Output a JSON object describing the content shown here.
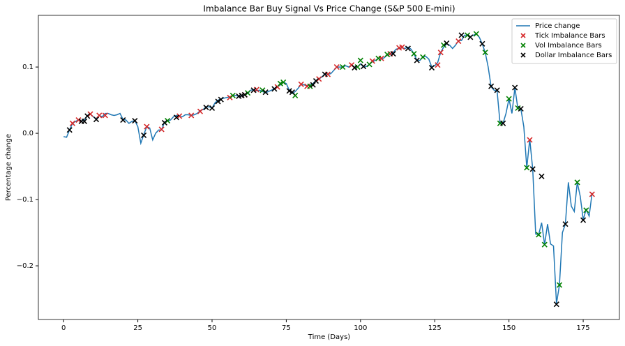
{
  "chart_data": {
    "type": "line",
    "title": "Imbalance Bar Buy Signal Vs Price Change (S&P 500 E-mini)",
    "x_label": "Time (Days)",
    "y_label": "Percentage change",
    "xlim": [
      -8.5,
      187.2
    ],
    "ylim": [
      -0.281,
      0.178
    ],
    "xticks": [
      0,
      25,
      50,
      75,
      100,
      125,
      150,
      175
    ],
    "yticks": [
      {
        "value": -0.2,
        "label": "−0.2"
      },
      {
        "value": -0.1,
        "label": "−0.1"
      },
      {
        "value": 0,
        "label": "0.0"
      },
      0.1
    ],
    "grid": false,
    "legend": "upper right",
    "series": [
      {
        "name": "Price change",
        "color": "#1f77b4",
        "marker": "line",
        "x": [
          0,
          1,
          2,
          3,
          4,
          5,
          6,
          7,
          8,
          9,
          10,
          11,
          12,
          13,
          14,
          15,
          16,
          17,
          18,
          19,
          20,
          21,
          22,
          23,
          24,
          25,
          26,
          27,
          28,
          29,
          30,
          31,
          32,
          33,
          34,
          35,
          36,
          37,
          38,
          39,
          40,
          41,
          42,
          43,
          44,
          45,
          46,
          47,
          48,
          49,
          50,
          51,
          52,
          53,
          54,
          55,
          56,
          57,
          58,
          59,
          60,
          61,
          62,
          63,
          64,
          65,
          66,
          67,
          68,
          69,
          70,
          71,
          72,
          73,
          74,
          75,
          76,
          77,
          78,
          79,
          80,
          81,
          82,
          83,
          84,
          85,
          86,
          87,
          88,
          89,
          90,
          91,
          92,
          93,
          94,
          95,
          96,
          97,
          98,
          99,
          100,
          101,
          102,
          103,
          104,
          105,
          106,
          107,
          108,
          109,
          110,
          111,
          112,
          113,
          114,
          115,
          116,
          117,
          118,
          119,
          120,
          121,
          122,
          123,
          124,
          125,
          126,
          127,
          128,
          129,
          130,
          131,
          132,
          133,
          134,
          135,
          136,
          137,
          138,
          139,
          140,
          141,
          142,
          143,
          144,
          145,
          146,
          147,
          148,
          149,
          150,
          151,
          152,
          153,
          154,
          155,
          156,
          157,
          158,
          159,
          160,
          161,
          162,
          163,
          164,
          165,
          166,
          167,
          168,
          169,
          170,
          171,
          172,
          173,
          174,
          175,
          176,
          177,
          178
        ],
        "values": [
          -0.005,
          -0.006,
          0.005,
          0.015,
          0.018,
          0.02,
          0.018,
          0.02,
          0.027,
          0.029,
          0.025,
          0.022,
          0.027,
          0.025,
          0.03,
          0.03,
          0.028,
          0.027,
          0.028,
          0.03,
          0.021,
          0.02,
          0.015,
          0.018,
          0.019,
          0.01,
          -0.015,
          -0.002,
          0.01,
          0.008,
          -0.01,
          0.0,
          0.005,
          0.005,
          0.017,
          0.019,
          0.02,
          0.025,
          0.027,
          0.025,
          0.025,
          0.028,
          0.028,
          0.027,
          0.028,
          0.03,
          0.034,
          0.036,
          0.04,
          0.04,
          0.038,
          0.046,
          0.05,
          0.052,
          0.053,
          0.054,
          0.055,
          0.057,
          0.057,
          0.056,
          0.056,
          0.058,
          0.06,
          0.065,
          0.066,
          0.064,
          0.065,
          0.063,
          0.061,
          0.063,
          0.065,
          0.068,
          0.07,
          0.073,
          0.077,
          0.075,
          0.065,
          0.06,
          0.063,
          0.068,
          0.074,
          0.073,
          0.072,
          0.073,
          0.075,
          0.08,
          0.082,
          0.085,
          0.09,
          0.089,
          0.09,
          0.095,
          0.1,
          0.1,
          0.1,
          0.102,
          0.1,
          0.103,
          0.1,
          0.1,
          0.105,
          0.1,
          0.101,
          0.104,
          0.108,
          0.11,
          0.113,
          0.112,
          0.114,
          0.118,
          0.119,
          0.122,
          0.127,
          0.128,
          0.129,
          0.128,
          0.13,
          0.127,
          0.12,
          0.11,
          0.11,
          0.115,
          0.116,
          0.112,
          0.1,
          0.102,
          0.107,
          0.122,
          0.13,
          0.135,
          0.133,
          0.128,
          0.133,
          0.14,
          0.14,
          0.148,
          0.148,
          0.146,
          0.148,
          0.15,
          0.145,
          0.135,
          0.122,
          0.1,
          0.07,
          0.065,
          0.064,
          0.015,
          0.015,
          0.03,
          0.052,
          0.03,
          0.069,
          0.037,
          0.037,
          0.01,
          -0.052,
          -0.009,
          -0.054,
          -0.152,
          -0.153,
          -0.135,
          -0.168,
          -0.137,
          -0.167,
          -0.17,
          -0.257,
          -0.229,
          -0.15,
          -0.137,
          -0.074,
          -0.11,
          -0.118,
          -0.074,
          -0.095,
          -0.13,
          -0.115,
          -0.125,
          -0.09
        ]
      },
      {
        "name": "Tick Imbalance Bars",
        "color": "#d62728",
        "marker": "x",
        "x": [
          3,
          5,
          9,
          12,
          14,
          28,
          33,
          39,
          43,
          46,
          56,
          61,
          65,
          72,
          80,
          82,
          86,
          89,
          92,
          97,
          104,
          107,
          110,
          113,
          114,
          126,
          127,
          133,
          157,
          178
        ],
        "values": [
          0.015,
          0.02,
          0.029,
          0.027,
          0.027,
          0.01,
          0.006,
          0.026,
          0.027,
          0.033,
          0.054,
          0.058,
          0.066,
          0.07,
          0.074,
          0.071,
          0.082,
          0.089,
          0.1,
          0.103,
          0.109,
          0.113,
          0.12,
          0.129,
          0.13,
          0.103,
          0.122,
          0.139,
          -0.01,
          -0.092
        ]
      },
      {
        "name": "Vol Imbalance Bars",
        "color": "#008000",
        "marker": "x",
        "x": [
          35,
          57,
          62,
          67,
          73,
          74,
          78,
          83,
          94,
          99,
          100,
          103,
          106,
          109,
          118,
          121,
          128,
          136,
          139,
          142,
          147,
          150,
          153,
          156,
          160,
          162,
          167,
          173,
          176
        ],
        "values": [
          0.019,
          0.057,
          0.061,
          0.065,
          0.075,
          0.077,
          0.057,
          0.071,
          0.1,
          0.1,
          0.11,
          0.104,
          0.113,
          0.119,
          0.12,
          0.115,
          0.133,
          0.148,
          0.15,
          0.122,
          0.015,
          0.052,
          0.038,
          -0.052,
          -0.153,
          -0.168,
          -0.229,
          -0.074,
          -0.116
        ]
      },
      {
        "name": "Dollar Imbalance Bars",
        "color": "#000000",
        "marker": "x",
        "x": [
          2,
          6,
          7,
          8,
          11,
          20,
          24,
          27,
          34,
          38,
          48,
          50,
          52,
          53,
          59,
          60,
          61,
          64,
          68,
          71,
          76,
          77,
          84,
          85,
          88,
          98,
          101,
          111,
          116,
          119,
          124,
          129,
          134,
          137,
          141,
          144,
          146,
          148,
          152,
          154,
          158,
          161,
          166,
          169,
          175
        ],
        "values": [
          0.005,
          0.018,
          0.018,
          0.026,
          0.021,
          0.02,
          0.019,
          -0.003,
          0.016,
          0.024,
          0.039,
          0.038,
          0.048,
          0.051,
          0.056,
          0.057,
          0.058,
          0.065,
          0.062,
          0.067,
          0.064,
          0.062,
          0.073,
          0.079,
          0.089,
          0.099,
          0.101,
          0.12,
          0.128,
          0.11,
          0.099,
          0.136,
          0.148,
          0.145,
          0.135,
          0.071,
          0.065,
          0.015,
          0.069,
          0.037,
          -0.054,
          -0.065,
          -0.258,
          -0.137,
          -0.131
        ]
      }
    ]
  }
}
